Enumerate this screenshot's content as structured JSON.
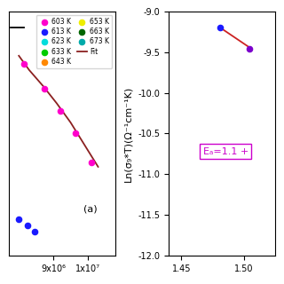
{
  "chart_data": [
    {
      "type": "scatter",
      "xlim": [
        7700000,
        10800000
      ],
      "ylim": [
        0.08,
        0.85
      ],
      "xticks": [
        {
          "value": 9000000,
          "label": "9x10⁶"
        },
        {
          "value": 10000000,
          "label": "1x10⁷"
        }
      ],
      "tick_labels": "x",
      "legend": "upper right",
      "annotations": [
        {
          "text": "(a)"
        }
      ],
      "series": [
        {
          "type": "line",
          "color": "#000000",
          "x": [
            7750000,
            8150000
          ],
          "values": [
            0.8,
            0.8
          ]
        },
        {
          "name": "603 K",
          "color": "#ff00cc",
          "x": [
            8150000,
            8750000,
            9200000,
            9650000,
            10100000
          ],
          "values": [
            0.685,
            0.605,
            0.535,
            0.465,
            0.375
          ]
        },
        {
          "name": "613 K",
          "color": "#1a1aff",
          "x": [
            8000000,
            8250000,
            8450000
          ],
          "values": [
            0.195,
            0.175,
            0.155
          ]
        },
        {
          "name": "623 K",
          "color": "#00dddd",
          "x": [],
          "values": []
        },
        {
          "name": "633 K",
          "color": "#00cc00",
          "x": [],
          "values": []
        },
        {
          "name": "643 K",
          "color": "#ff8800",
          "x": [],
          "values": []
        },
        {
          "name": "653 K",
          "color": "#eeee00",
          "x": [],
          "values": []
        },
        {
          "name": "663 K",
          "color": "#006600",
          "x": [],
          "values": []
        },
        {
          "name": "673 K",
          "color": "#00aaaa",
          "x": [],
          "values": []
        },
        {
          "name": "Fit",
          "type": "line",
          "color": "#8b2020",
          "x": [
            8000000,
            8300000,
            8700000,
            9100000,
            9500000,
            9900000,
            10300000
          ],
          "values": [
            0.71,
            0.665,
            0.615,
            0.56,
            0.5,
            0.43,
            0.36
          ]
        }
      ]
    },
    {
      "type": "scatter",
      "ylabel": "Ln(σ₉*T)(Ω⁻¹cm⁻¹K)",
      "xlim": [
        1.44,
        1.525
      ],
      "ylim": [
        -12.0,
        -9.0
      ],
      "xticks": [
        1.45,
        {
          "value": 1.5,
          "label": "1.50"
        }
      ],
      "yticks": [
        -12.0,
        -11.5,
        -11.0,
        -10.5,
        -10.0,
        -9.5,
        -9.0
      ],
      "annotations": [
        {
          "text": "Eₐ=1.1 +",
          "color": "#cc00cc"
        }
      ],
      "series": [
        {
          "color": "#1a1aff",
          "x": [
            1.481
          ],
          "values": [
            -9.2
          ]
        },
        {
          "color": "#7b00cc",
          "x": [
            1.504
          ],
          "values": [
            -9.46
          ]
        },
        {
          "type": "line",
          "color": "#cc2222",
          "x": [
            1.481,
            1.504
          ],
          "values": [
            -9.2,
            -9.44
          ]
        }
      ]
    }
  ]
}
